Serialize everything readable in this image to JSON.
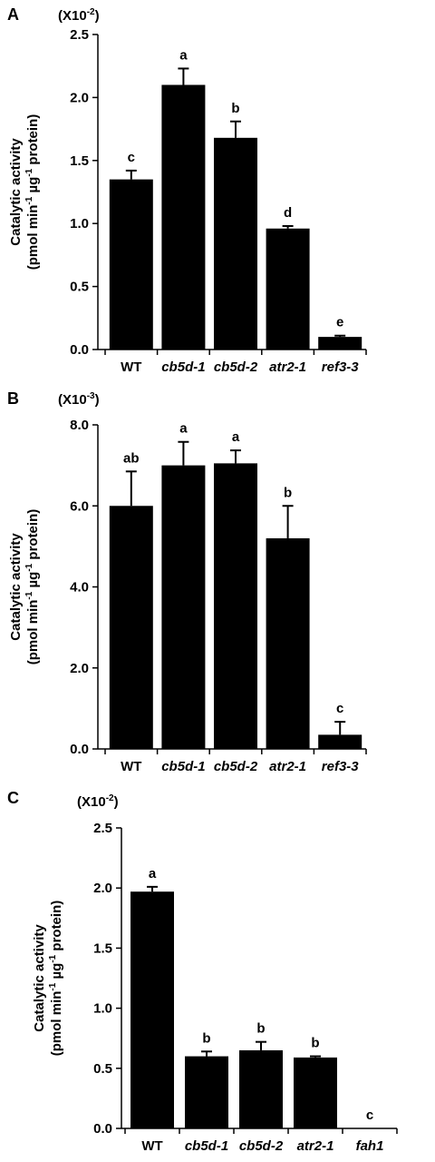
{
  "charts": [
    {
      "panel": "A",
      "scale": "(X10",
      "exp": "-2",
      "ylabel": [
        "Catalytic activity",
        "(pmol min",
        "-1",
        " µg",
        "-1",
        " protein)"
      ],
      "chart_data": {
        "type": "bar",
        "categories": [
          "WT",
          "cb5d-1",
          "cb5d-2",
          "atr2-1",
          "ref3-3"
        ],
        "italic": [
          false,
          true,
          true,
          true,
          true
        ],
        "values": [
          1.35,
          2.1,
          1.68,
          0.96,
          0.1
        ],
        "errors": [
          0.07,
          0.13,
          0.13,
          0.02,
          0.01
        ],
        "significance": [
          "c",
          "a",
          "b",
          "d",
          "e"
        ],
        "ylim": [
          0,
          2.5
        ],
        "yticks": [
          "0.0",
          "0.5",
          "1.0",
          "1.5",
          "2.0",
          "2.5"
        ],
        "bar_color": "#000000"
      }
    },
    {
      "panel": "B",
      "scale": "(X10",
      "exp": "-3",
      "ylabel": [
        "Catalytic activity",
        "(pmol min",
        "-1",
        " µg",
        "-1",
        " protein)"
      ],
      "chart_data": {
        "type": "bar",
        "categories": [
          "WT",
          "cb5d-1",
          "cb5d-2",
          "atr2-1",
          "ref3-3"
        ],
        "italic": [
          false,
          true,
          true,
          true,
          true
        ],
        "values": [
          6.0,
          7.0,
          7.05,
          5.2,
          0.35
        ],
        "errors": [
          0.85,
          0.58,
          0.32,
          0.8,
          0.32
        ],
        "significance": [
          "ab",
          "a",
          "a",
          "b",
          "c"
        ],
        "ylim": [
          0,
          8.0
        ],
        "yticks": [
          "0.0",
          "2.0",
          "4.0",
          "6.0",
          "8.0"
        ],
        "bar_color": "#000000"
      }
    },
    {
      "panel": "C",
      "scale": "(X10",
      "exp": "-2",
      "ylabel": [
        "Catalytic activity",
        "(pmol min",
        "-1",
        " µg",
        "-1",
        " protein)"
      ],
      "chart_data": {
        "type": "bar",
        "categories": [
          "WT",
          "cb5d-1",
          "cb5d-2",
          "atr2-1",
          "fah1"
        ],
        "italic": [
          false,
          true,
          true,
          true,
          true
        ],
        "values": [
          1.97,
          0.6,
          0.65,
          0.59,
          0.0
        ],
        "errors": [
          0.04,
          0.04,
          0.07,
          0.01,
          0.0
        ],
        "significance": [
          "a",
          "b",
          "b",
          "b",
          "c"
        ],
        "ylim": [
          0,
          2.5
        ],
        "yticks": [
          "0.0",
          "0.5",
          "1.0",
          "1.5",
          "2.0",
          "2.5"
        ],
        "bar_color": "#000000"
      }
    }
  ]
}
